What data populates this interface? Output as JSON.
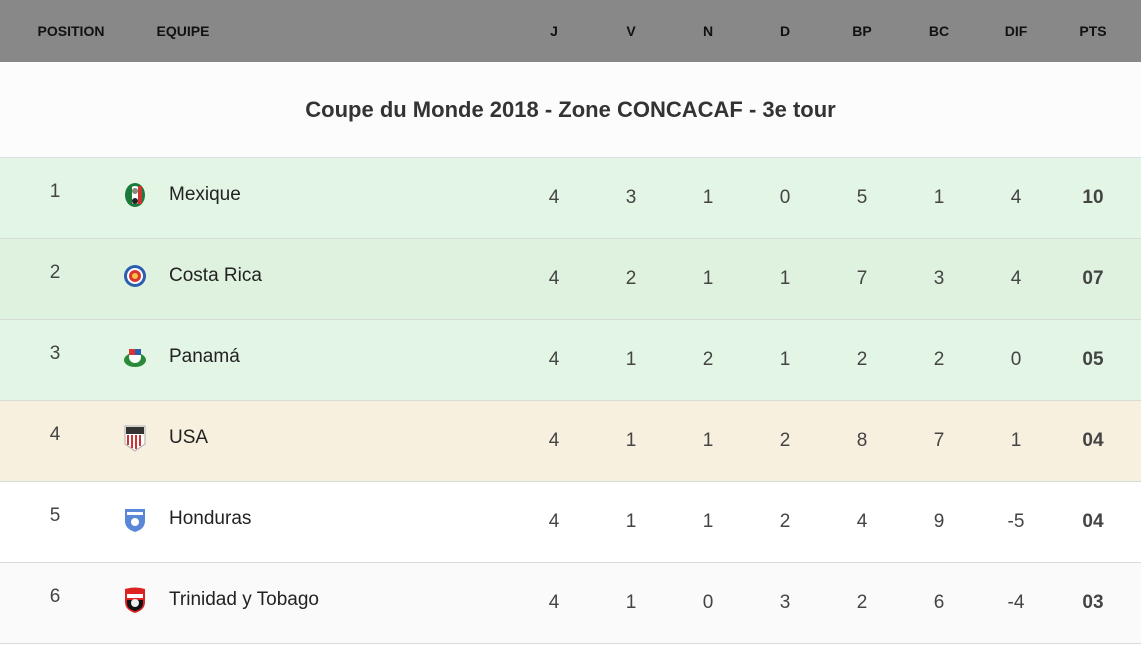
{
  "header": {
    "position": "POSITION",
    "team": "EQUIPE",
    "cols": [
      "J",
      "V",
      "N",
      "D",
      "BP",
      "BC",
      "DIF",
      "PTS"
    ]
  },
  "title": "Coupe du Monde 2018 - Zone CONCACAF - 3e tour",
  "colors": {
    "header": "#888888",
    "qualified": "#e3f4e3",
    "playoff": "#f8f0df"
  },
  "rows": [
    {
      "pos": "1",
      "team": "Mexique",
      "icon": "mexico-crest-icon",
      "stats": [
        "4",
        "3",
        "1",
        "0",
        "5",
        "1",
        "4",
        "10"
      ],
      "bg": "#e3f5e4"
    },
    {
      "pos": "2",
      "team": "Costa Rica",
      "icon": "costa-rica-crest-icon",
      "stats": [
        "4",
        "2",
        "1",
        "1",
        "7",
        "3",
        "4",
        "07"
      ],
      "bg": "#dff2df"
    },
    {
      "pos": "3",
      "team": "Panamá",
      "icon": "panama-crest-icon",
      "stats": [
        "4",
        "1",
        "2",
        "1",
        "2",
        "2",
        "0",
        "05"
      ],
      "bg": "#e3f5e4"
    },
    {
      "pos": "4",
      "team": "USA",
      "icon": "usa-crest-icon",
      "stats": [
        "4",
        "1",
        "1",
        "2",
        "8",
        "7",
        "1",
        "04"
      ],
      "bg": "#f8f0df"
    },
    {
      "pos": "5",
      "team": "Honduras",
      "icon": "honduras-crest-icon",
      "stats": [
        "4",
        "1",
        "1",
        "2",
        "4",
        "9",
        "-5",
        "04"
      ],
      "bg": "#ffffff"
    },
    {
      "pos": "6",
      "team": "Trinidad y Tobago",
      "icon": "trinidad-crest-icon",
      "stats": [
        "4",
        "1",
        "0",
        "3",
        "2",
        "6",
        "-4",
        "03"
      ],
      "bg": "#fafafa"
    }
  ]
}
